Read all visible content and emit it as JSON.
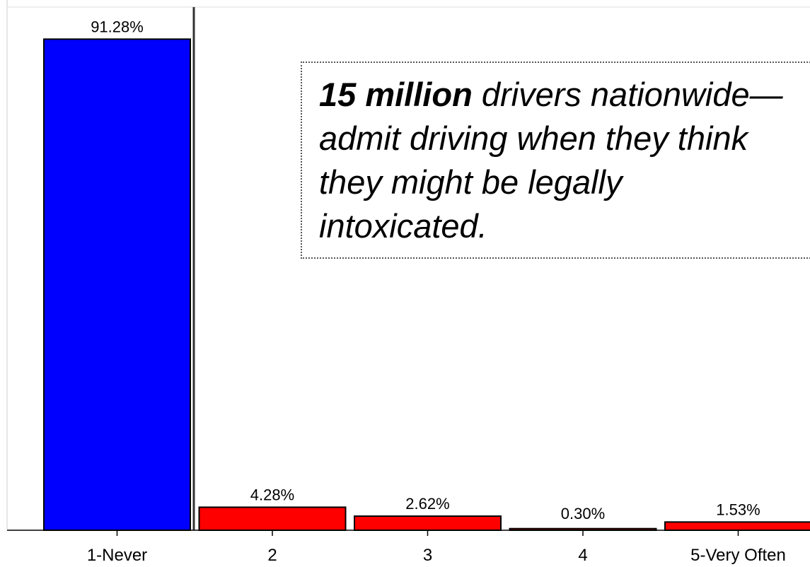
{
  "chart_data": {
    "type": "bar",
    "categories": [
      "1-Never",
      "2",
      "3",
      "4",
      "5-Very Often"
    ],
    "values": [
      91.28,
      4.28,
      2.62,
      0.3,
      1.53
    ],
    "value_labels": [
      "91.28%",
      "4.28%",
      "2.62%",
      "0.30%",
      "1.53%"
    ],
    "bar_colors": [
      "#0000ff",
      "#ff0000",
      "#ff0000",
      "#ff0000",
      "#ff0000"
    ],
    "ylim": [
      0,
      100
    ],
    "grid": false,
    "legend": "none"
  },
  "callout": {
    "line1_bold": "15 million",
    "line1_rest": " drivers nationwide—",
    "line2": "admit driving when they think",
    "line3": "they might be legally",
    "line4": "intoxicated."
  }
}
